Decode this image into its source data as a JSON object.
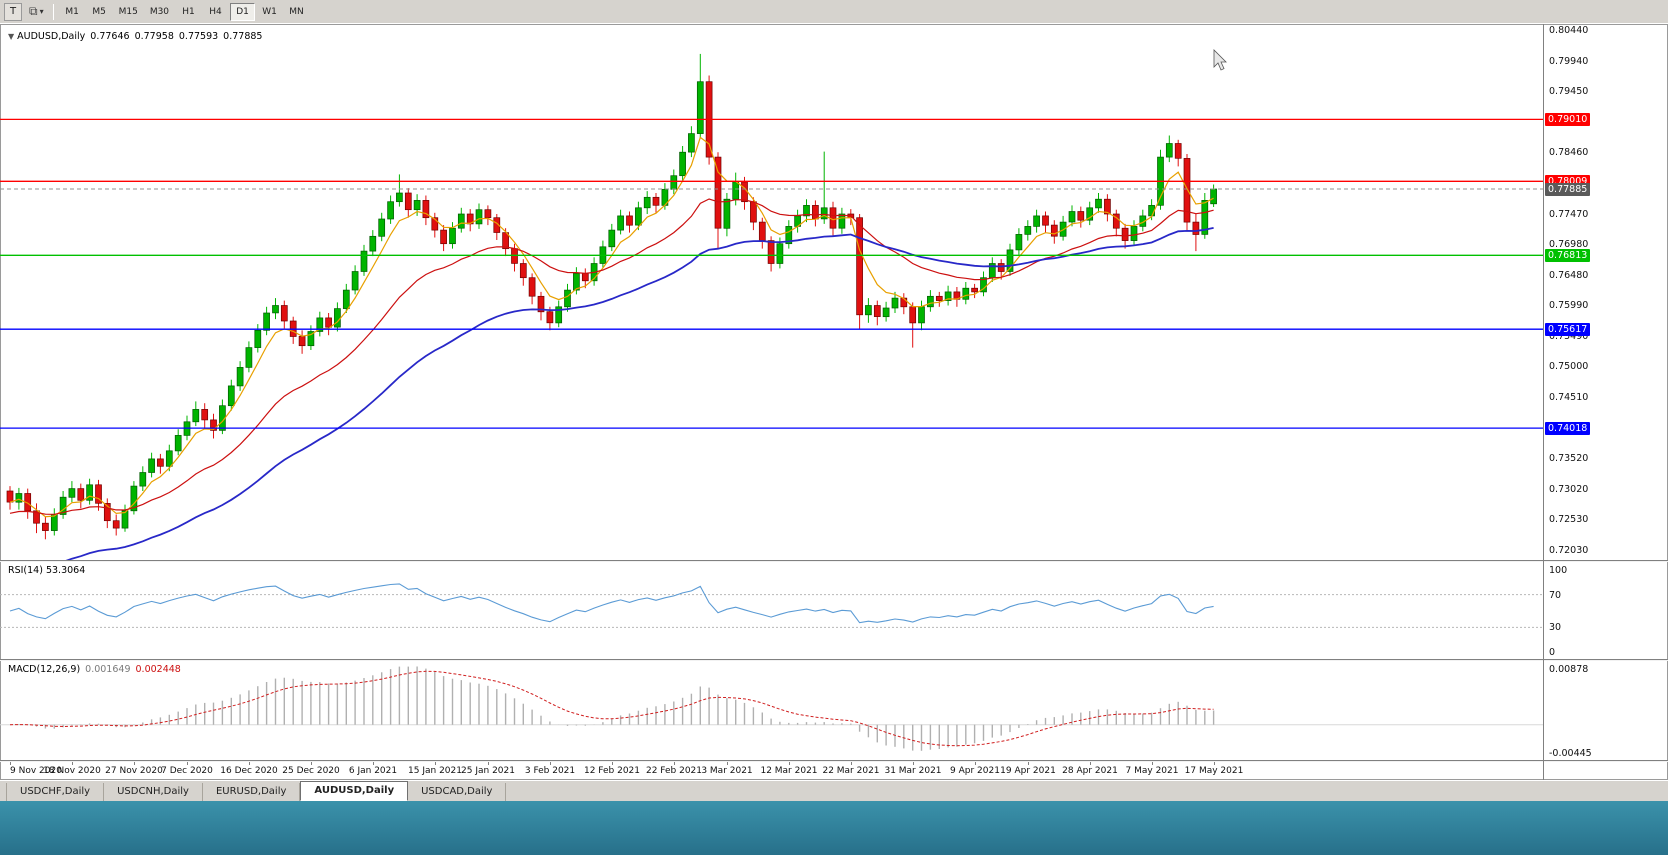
{
  "toolbar": {
    "handle_label": "T",
    "windows_icon": "⧉",
    "dropdown_caret": "▾",
    "timeframes": [
      "M1",
      "M5",
      "M15",
      "M30",
      "H1",
      "H4",
      "D1",
      "W1",
      "MN"
    ],
    "active_timeframe": "D1"
  },
  "chart": {
    "title": {
      "collapse_arrow": "▼",
      "symbol": "AUDUSD,Daily",
      "open": "0.77646",
      "high": "0.77958",
      "low": "0.77593",
      "close": "0.77885"
    },
    "price_axis": {
      "max": 0.8044,
      "min": 0.7203,
      "labels": [
        "0.80440",
        "0.79940",
        "0.79450",
        "0.78950",
        "0.78460",
        "0.77960",
        "0.77470",
        "0.76980",
        "0.76480",
        "0.75990",
        "0.75490",
        "0.75000",
        "0.74510",
        "0.74010",
        "0.73520",
        "0.73020",
        "0.72530",
        "0.72030"
      ]
    },
    "hlines": [
      {
        "price": 0.7901,
        "label": "0.79010",
        "color": "#FF0000"
      },
      {
        "price": 0.78009,
        "label": "0.78009",
        "color": "#FF0000"
      },
      {
        "price": 0.76813,
        "label": "0.76813",
        "color": "#00C000"
      },
      {
        "price": 0.75617,
        "label": "0.75617",
        "color": "#0000FF"
      },
      {
        "price": 0.74018,
        "label": "0.74018",
        "color": "#0000FF"
      }
    ],
    "current_price": {
      "value": 0.77885,
      "label": "0.77885",
      "color": "#5A5A5A"
    },
    "moving_averages": [
      {
        "name": "ma-fast",
        "period": 5,
        "color": "#E8A000",
        "width": 1.2
      },
      {
        "name": "ma-medium",
        "period": 20,
        "color": "#CC1010",
        "width": 1.2,
        "seed_offset": -0.002
      },
      {
        "name": "ma-slow",
        "period": 45,
        "color": "#2828C8",
        "width": 1.8,
        "seed": 0.7155
      }
    ],
    "candles": [
      [
        0.73,
        0.7308,
        0.727,
        0.7282
      ],
      [
        0.7282,
        0.7305,
        0.727,
        0.7296
      ],
      [
        0.7296,
        0.7304,
        0.7255,
        0.7268
      ],
      [
        0.7268,
        0.728,
        0.7232,
        0.7248
      ],
      [
        0.7248,
        0.7258,
        0.7222,
        0.7236
      ],
      [
        0.7236,
        0.7272,
        0.7228,
        0.7262
      ],
      [
        0.7262,
        0.73,
        0.7255,
        0.729
      ],
      [
        0.729,
        0.7316,
        0.7282,
        0.7304
      ],
      [
        0.7304,
        0.7312,
        0.7272,
        0.7285
      ],
      [
        0.7285,
        0.732,
        0.7278,
        0.731
      ],
      [
        0.731,
        0.7318,
        0.7268,
        0.728
      ],
      [
        0.728,
        0.7288,
        0.724,
        0.7252
      ],
      [
        0.7252,
        0.7262,
        0.7228,
        0.724
      ],
      [
        0.724,
        0.7278,
        0.7234,
        0.7268
      ],
      [
        0.7268,
        0.7316,
        0.7262,
        0.7308
      ],
      [
        0.7308,
        0.734,
        0.73,
        0.733
      ],
      [
        0.733,
        0.7362,
        0.7322,
        0.7352
      ],
      [
        0.7352,
        0.736,
        0.7328,
        0.734
      ],
      [
        0.734,
        0.7375,
        0.7332,
        0.7365
      ],
      [
        0.7365,
        0.74,
        0.7358,
        0.739
      ],
      [
        0.739,
        0.7422,
        0.7382,
        0.7412
      ],
      [
        0.7412,
        0.7445,
        0.7405,
        0.7432
      ],
      [
        0.7432,
        0.7442,
        0.7402,
        0.7415
      ],
      [
        0.7415,
        0.7425,
        0.7385,
        0.7398
      ],
      [
        0.7398,
        0.7448,
        0.7392,
        0.7438
      ],
      [
        0.7438,
        0.748,
        0.743,
        0.747
      ],
      [
        0.747,
        0.751,
        0.7462,
        0.75
      ],
      [
        0.75,
        0.7542,
        0.7492,
        0.7532
      ],
      [
        0.7532,
        0.757,
        0.7524,
        0.756
      ],
      [
        0.756,
        0.7598,
        0.7552,
        0.7588
      ],
      [
        0.7588,
        0.7612,
        0.7578,
        0.76
      ],
      [
        0.76,
        0.7608,
        0.7562,
        0.7575
      ],
      [
        0.7575,
        0.7582,
        0.7538,
        0.755
      ],
      [
        0.755,
        0.756,
        0.7522,
        0.7535
      ],
      [
        0.7535,
        0.7568,
        0.7528,
        0.7558
      ],
      [
        0.7558,
        0.759,
        0.755,
        0.758
      ],
      [
        0.758,
        0.7588,
        0.7552,
        0.7565
      ],
      [
        0.7565,
        0.7605,
        0.7558,
        0.7595
      ],
      [
        0.7595,
        0.7635,
        0.7588,
        0.7625
      ],
      [
        0.7625,
        0.7665,
        0.7618,
        0.7655
      ],
      [
        0.7655,
        0.7698,
        0.7648,
        0.7688
      ],
      [
        0.7688,
        0.7722,
        0.768,
        0.7712
      ],
      [
        0.7712,
        0.775,
        0.7704,
        0.774
      ],
      [
        0.774,
        0.7778,
        0.7732,
        0.7768
      ],
      [
        0.7768,
        0.7812,
        0.776,
        0.7782
      ],
      [
        0.7782,
        0.779,
        0.7742,
        0.7755
      ],
      [
        0.7755,
        0.778,
        0.7745,
        0.777
      ],
      [
        0.777,
        0.7778,
        0.773,
        0.7742
      ],
      [
        0.7742,
        0.775,
        0.771,
        0.7722
      ],
      [
        0.7722,
        0.773,
        0.7688,
        0.77
      ],
      [
        0.77,
        0.7735,
        0.7692,
        0.7725
      ],
      [
        0.7725,
        0.7758,
        0.7718,
        0.7748
      ],
      [
        0.7748,
        0.7756,
        0.772,
        0.7732
      ],
      [
        0.7732,
        0.7765,
        0.7724,
        0.7755
      ],
      [
        0.7755,
        0.7762,
        0.773,
        0.7742
      ],
      [
        0.7742,
        0.7748,
        0.7706,
        0.7718
      ],
      [
        0.7718,
        0.7725,
        0.768,
        0.7692
      ],
      [
        0.7692,
        0.77,
        0.7655,
        0.7668
      ],
      [
        0.7668,
        0.7675,
        0.7632,
        0.7645
      ],
      [
        0.7645,
        0.7652,
        0.7602,
        0.7615
      ],
      [
        0.7615,
        0.7622,
        0.7576,
        0.759
      ],
      [
        0.759,
        0.7598,
        0.756,
        0.7572
      ],
      [
        0.7572,
        0.7608,
        0.7565,
        0.7598
      ],
      [
        0.7598,
        0.7635,
        0.759,
        0.7625
      ],
      [
        0.7625,
        0.7662,
        0.7618,
        0.7652
      ],
      [
        0.7652,
        0.766,
        0.7628,
        0.764
      ],
      [
        0.764,
        0.7678,
        0.7632,
        0.7668
      ],
      [
        0.7668,
        0.7705,
        0.766,
        0.7695
      ],
      [
        0.7695,
        0.7732,
        0.7688,
        0.7722
      ],
      [
        0.7722,
        0.7755,
        0.7715,
        0.7745
      ],
      [
        0.7745,
        0.7752,
        0.7718,
        0.773
      ],
      [
        0.773,
        0.7768,
        0.7722,
        0.7758
      ],
      [
        0.7758,
        0.7785,
        0.7748,
        0.7775
      ],
      [
        0.7775,
        0.7782,
        0.775,
        0.7762
      ],
      [
        0.7762,
        0.7798,
        0.7755,
        0.7788
      ],
      [
        0.7788,
        0.782,
        0.778,
        0.781
      ],
      [
        0.781,
        0.7858,
        0.7802,
        0.7848
      ],
      [
        0.7848,
        0.789,
        0.784,
        0.7878
      ],
      [
        0.7878,
        0.8007,
        0.787,
        0.7962
      ],
      [
        0.7962,
        0.7972,
        0.7828,
        0.784
      ],
      [
        0.784,
        0.7848,
        0.7692,
        0.7725
      ],
      [
        0.7725,
        0.7782,
        0.7712,
        0.7772
      ],
      [
        0.7772,
        0.7815,
        0.7762,
        0.78
      ],
      [
        0.78,
        0.7808,
        0.7755,
        0.7768
      ],
      [
        0.7768,
        0.7775,
        0.7722,
        0.7735
      ],
      [
        0.7735,
        0.7742,
        0.7692,
        0.7705
      ],
      [
        0.7705,
        0.7712,
        0.7655,
        0.7668
      ],
      [
        0.7668,
        0.771,
        0.766,
        0.77
      ],
      [
        0.77,
        0.7738,
        0.7692,
        0.7728
      ],
      [
        0.7728,
        0.7755,
        0.7718,
        0.7745
      ],
      [
        0.7745,
        0.7772,
        0.7735,
        0.7762
      ],
      [
        0.7762,
        0.777,
        0.7728,
        0.774
      ],
      [
        0.774,
        0.7849,
        0.7732,
        0.7758
      ],
      [
        0.7758,
        0.7768,
        0.7712,
        0.7725
      ],
      [
        0.7725,
        0.7758,
        0.7716,
        0.7748
      ],
      [
        0.7748,
        0.7756,
        0.773,
        0.7742
      ],
      [
        0.7742,
        0.7748,
        0.7562,
        0.7585
      ],
      [
        0.7585,
        0.7612,
        0.7572,
        0.76
      ],
      [
        0.76,
        0.7608,
        0.7568,
        0.7582
      ],
      [
        0.7582,
        0.7606,
        0.7574,
        0.7596
      ],
      [
        0.7596,
        0.7622,
        0.7588,
        0.7612
      ],
      [
        0.7612,
        0.762,
        0.7586,
        0.7598
      ],
      [
        0.7598,
        0.7605,
        0.7532,
        0.7572
      ],
      [
        0.7572,
        0.7608,
        0.756,
        0.7598
      ],
      [
        0.7598,
        0.7625,
        0.759,
        0.7615
      ],
      [
        0.7615,
        0.7622,
        0.7598,
        0.7608
      ],
      [
        0.7608,
        0.7632,
        0.76,
        0.7622
      ],
      [
        0.7622,
        0.763,
        0.7598,
        0.761
      ],
      [
        0.761,
        0.7638,
        0.7602,
        0.7628
      ],
      [
        0.7628,
        0.7635,
        0.7612,
        0.7622
      ],
      [
        0.7622,
        0.7655,
        0.7615,
        0.7645
      ],
      [
        0.7645,
        0.7678,
        0.7638,
        0.7668
      ],
      [
        0.7668,
        0.7675,
        0.7642,
        0.7655
      ],
      [
        0.7655,
        0.77,
        0.7648,
        0.769
      ],
      [
        0.769,
        0.7725,
        0.7682,
        0.7715
      ],
      [
        0.7715,
        0.7738,
        0.7705,
        0.7728
      ],
      [
        0.7728,
        0.7755,
        0.7718,
        0.7745
      ],
      [
        0.7745,
        0.7752,
        0.7718,
        0.773
      ],
      [
        0.773,
        0.7738,
        0.77,
        0.7712
      ],
      [
        0.7712,
        0.7745,
        0.7705,
        0.7735
      ],
      [
        0.7735,
        0.7762,
        0.7728,
        0.7752
      ],
      [
        0.7752,
        0.776,
        0.7726,
        0.7738
      ],
      [
        0.7738,
        0.7768,
        0.773,
        0.7758
      ],
      [
        0.7758,
        0.7782,
        0.775,
        0.7772
      ],
      [
        0.7772,
        0.778,
        0.7736,
        0.7748
      ],
      [
        0.7748,
        0.7755,
        0.7712,
        0.7725
      ],
      [
        0.7725,
        0.7732,
        0.7692,
        0.7705
      ],
      [
        0.7705,
        0.7738,
        0.7698,
        0.7728
      ],
      [
        0.7728,
        0.7755,
        0.772,
        0.7745
      ],
      [
        0.7745,
        0.7772,
        0.7738,
        0.7762
      ],
      [
        0.7762,
        0.7852,
        0.7755,
        0.784
      ],
      [
        0.784,
        0.7875,
        0.7832,
        0.7862
      ],
      [
        0.7862,
        0.7868,
        0.7825,
        0.7838
      ],
      [
        0.7838,
        0.7845,
        0.7722,
        0.7735
      ],
      [
        0.7735,
        0.7748,
        0.7688,
        0.7715
      ],
      [
        0.7715,
        0.7782,
        0.7708,
        0.777
      ],
      [
        0.77646,
        0.77958,
        0.77593,
        0.77885
      ]
    ]
  },
  "rsi": {
    "name": "RSI(14)",
    "value": "53.3064",
    "color": "#5B9BD5",
    "levels": [
      70,
      30
    ],
    "axis_labels": [
      "100",
      "70",
      "30",
      "0"
    ]
  },
  "macd": {
    "name": "MACD(12,26,9)",
    "value_main": "0.001649",
    "value_signal": "0.002448",
    "hist_color": "#B0B0B0",
    "signal_color": "#D02020",
    "axis_max": 0.00878,
    "axis_min": -0.00445,
    "axis_max_label": "0.00878",
    "axis_min_label": "-0.00445"
  },
  "time_axis": {
    "ticks": [
      {
        "label": "9 Nov 2020",
        "i": 0
      },
      {
        "label": "18 Nov 2020",
        "i": 7
      },
      {
        "label": "27 Nov 2020",
        "i": 14
      },
      {
        "label": "7 Dec 2020",
        "i": 20
      },
      {
        "label": "16 Dec 2020",
        "i": 27
      },
      {
        "label": "25 Dec 2020",
        "i": 34
      },
      {
        "label": "6 Jan 2021",
        "i": 41
      },
      {
        "label": "15 Jan 2021",
        "i": 48
      },
      {
        "label": "25 Jan 2021",
        "i": 54
      },
      {
        "label": "3 Feb 2021",
        "i": 61
      },
      {
        "label": "12 Feb 2021",
        "i": 68
      },
      {
        "label": "22 Feb 2021",
        "i": 75
      },
      {
        "label": "3 Mar 2021",
        "i": 81
      },
      {
        "label": "12 Mar 2021",
        "i": 88
      },
      {
        "label": "22 Mar 2021",
        "i": 95
      },
      {
        "label": "31 Mar 2021",
        "i": 102
      },
      {
        "label": "9 Apr 2021",
        "i": 109
      },
      {
        "label": "19 Apr 2021",
        "i": 115
      },
      {
        "label": "28 Apr 2021",
        "i": 122
      },
      {
        "label": "7 May 2021",
        "i": 129
      },
      {
        "label": "17 May 2021",
        "i": 136
      }
    ]
  },
  "tabs": [
    "USDCHF,Daily",
    "USDCNH,Daily",
    "EURUSD,Daily",
    "AUDUSD,Daily",
    "USDCAD,Daily"
  ],
  "active_tab": "AUDUSD,Daily",
  "colors": {
    "candle_up": "#00B400",
    "candle_up_border": "#005A00",
    "candle_down": "#E01010",
    "candle_down_border": "#6E0000",
    "toolbar_bg": "#D6D3CE",
    "chart_bg": "#FFFFFF",
    "taskbar": "#2E7D96",
    "panel_separator": "#808080"
  }
}
